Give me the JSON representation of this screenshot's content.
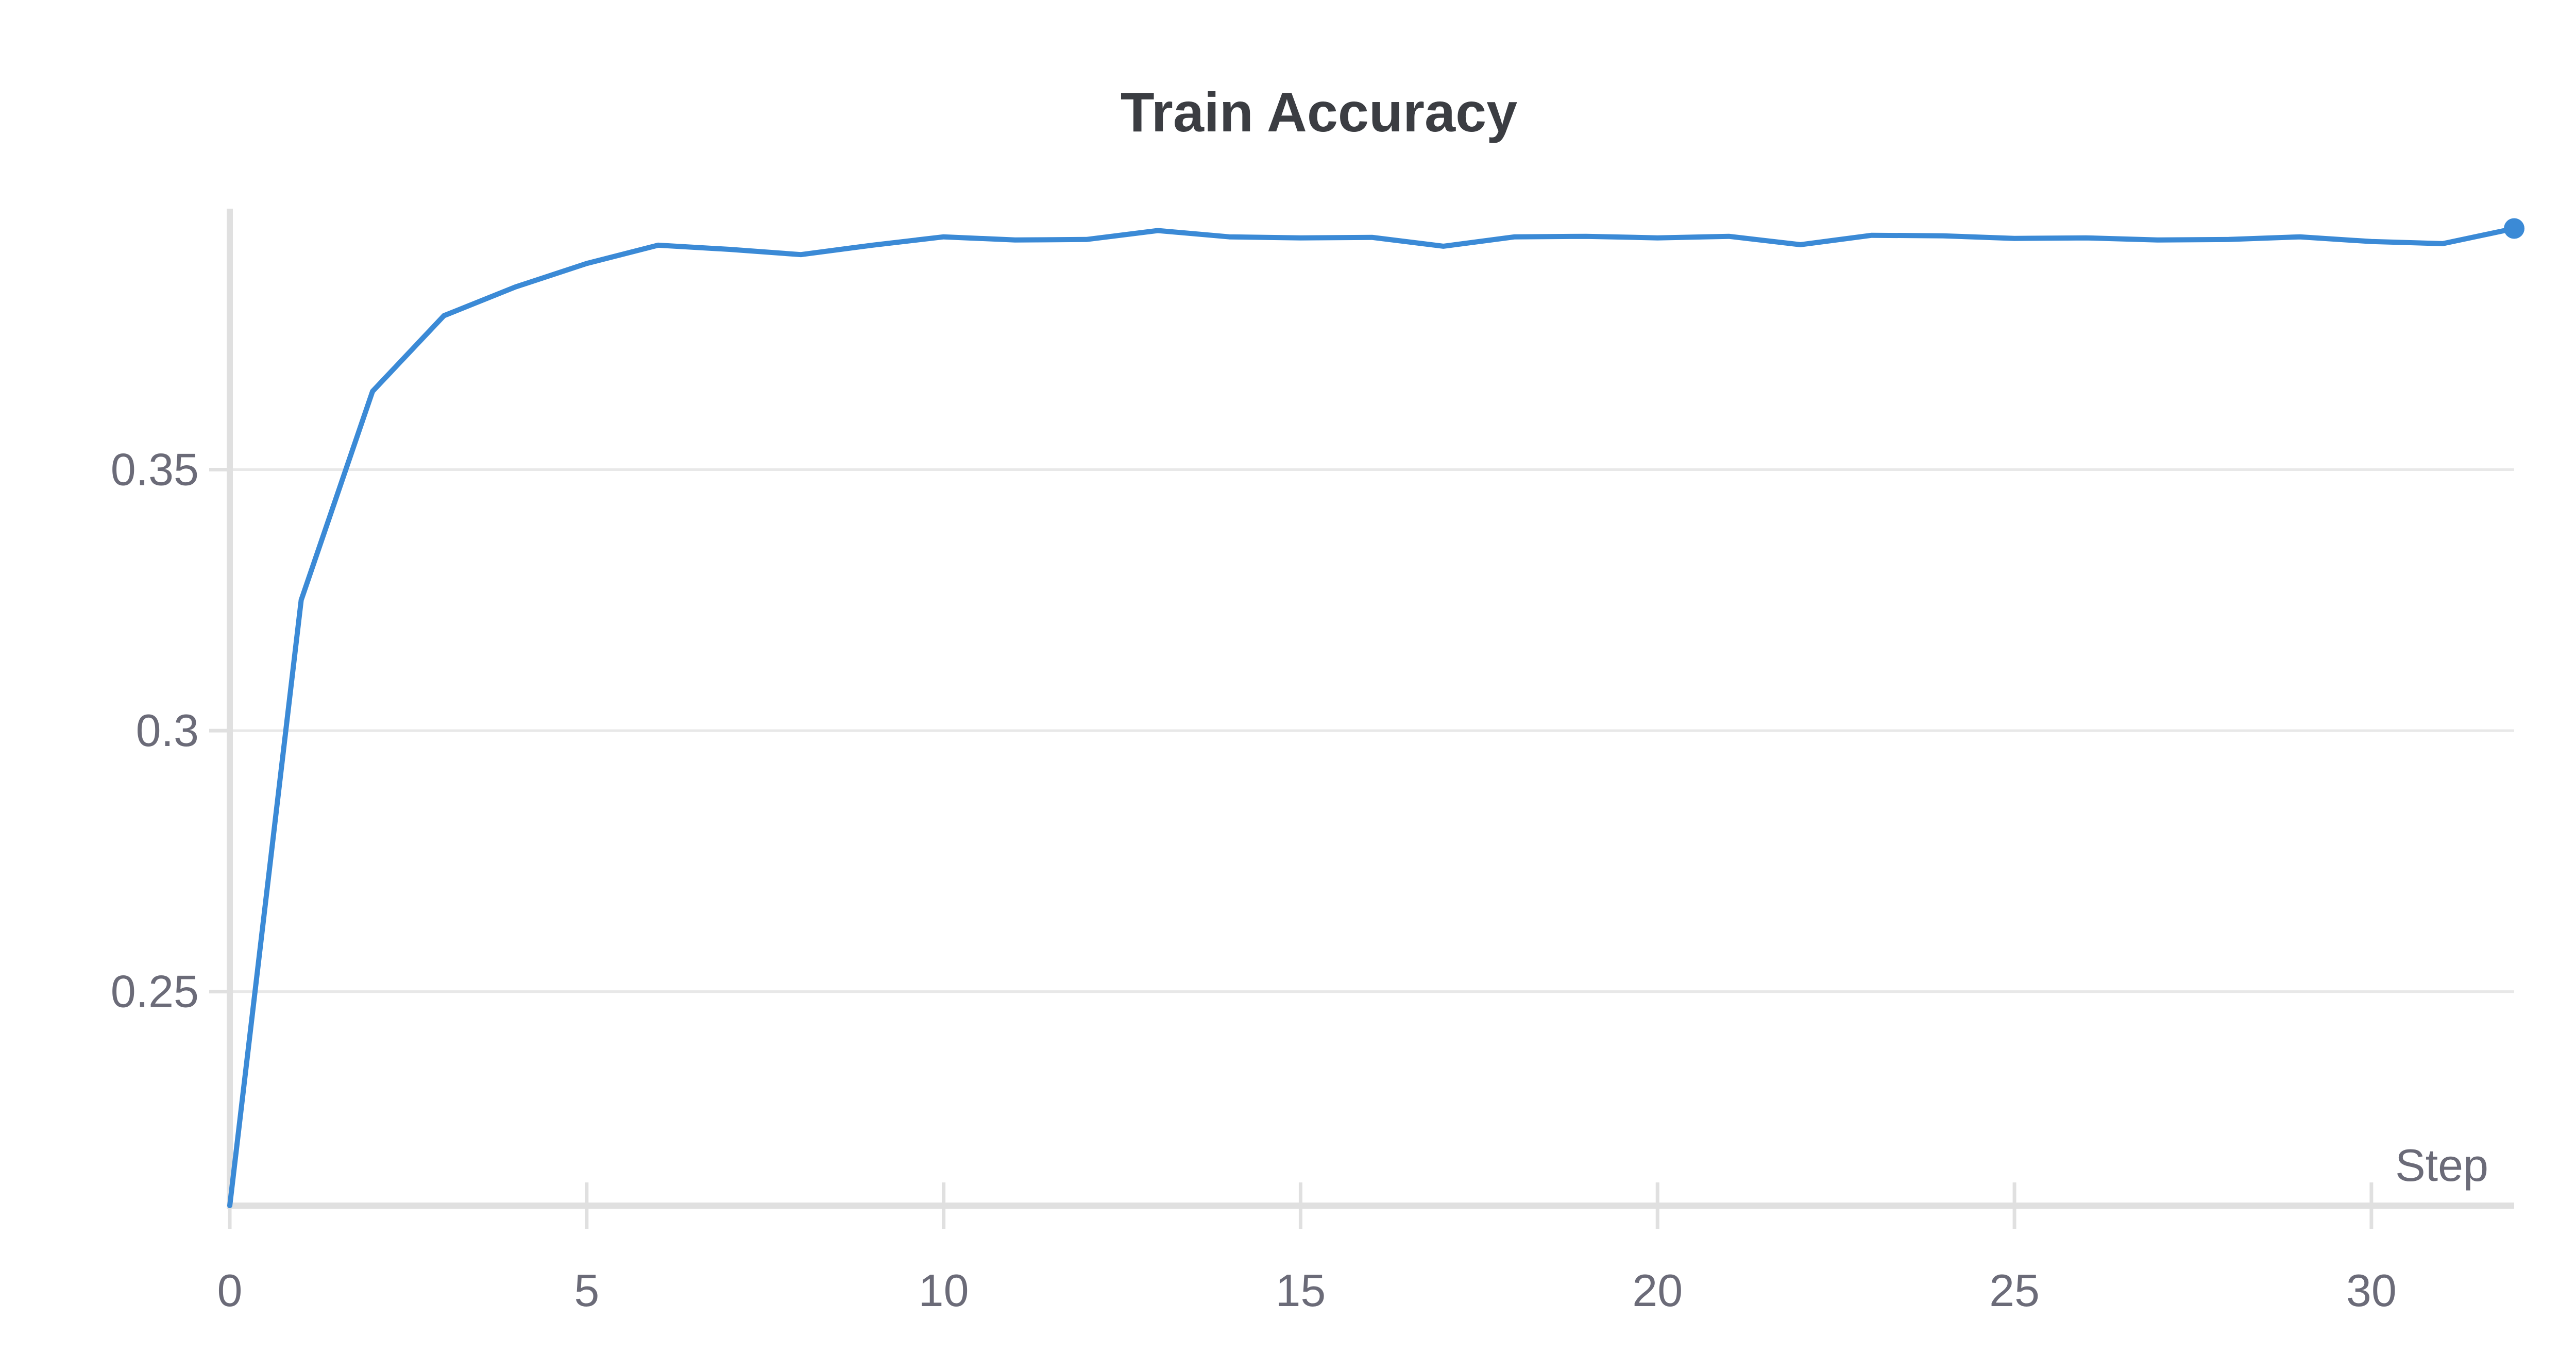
{
  "chart_data": {
    "type": "line",
    "title": "Train Accuracy",
    "xlabel": "Step",
    "ylabel": "",
    "xlim": [
      0,
      32
    ],
    "ylim": [
      0.209,
      0.4
    ],
    "xticks": [
      0,
      5,
      10,
      15,
      20,
      25,
      30
    ],
    "yticks": [
      0.25,
      0.3,
      0.35
    ],
    "ytick_labels": [
      "0.25",
      "0.3",
      "0.35"
    ],
    "xtick_labels": [
      "0",
      "5",
      "10",
      "15",
      "20",
      "25",
      "30"
    ],
    "grid": true,
    "series": [
      {
        "color": "#3b8ad6",
        "x": [
          0,
          1,
          2,
          3,
          4,
          5,
          6,
          7,
          8,
          9,
          10,
          11,
          12,
          13,
          14,
          15,
          16,
          17,
          18,
          19,
          20,
          21,
          22,
          23,
          24,
          25,
          26,
          27,
          28,
          29,
          30,
          31,
          32
        ],
        "y": [
          0.209,
          0.325,
          0.365,
          0.3795,
          0.385,
          0.3895,
          0.393,
          0.3922,
          0.3912,
          0.393,
          0.3946,
          0.394,
          0.3941,
          0.3958,
          0.3946,
          0.3944,
          0.3945,
          0.3928,
          0.3946,
          0.3947,
          0.3944,
          0.3947,
          0.3931,
          0.3949,
          0.3948,
          0.3943,
          0.3944,
          0.394,
          0.3941,
          0.3946,
          0.3937,
          0.3933,
          0.3962
        ],
        "end_marker": true
      }
    ]
  }
}
